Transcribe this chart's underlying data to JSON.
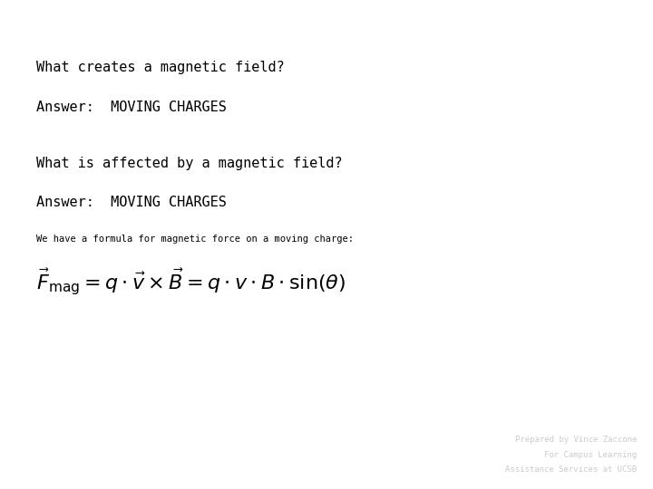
{
  "background_color": "#ffffff",
  "line1": "What creates a magnetic field?",
  "line2": "Answer:  MOVING CHARGES",
  "line3": "What is affected by a magnetic field?",
  "line4": "Answer:  MOVING CHARGES",
  "line5": "We have a formula for magnetic force on a moving charge:",
  "formula": "$\\vec{F}_{\\mathrm{mag}} = q \\cdot \\vec{v} \\times \\vec{B} = q \\cdot v \\cdot B \\cdot \\sin(\\theta)$",
  "footer1": "Prepared by Vince Zaccone",
  "footer2": "For Campus Learning",
  "footer3": "Assistance Services at UCSB",
  "text_color": "#000000",
  "footer_color": "#cccccc",
  "font_size_main": 11,
  "font_size_answer": 11,
  "font_size_formula": 16,
  "font_size_small": 7.5,
  "font_size_footer": 6.5
}
